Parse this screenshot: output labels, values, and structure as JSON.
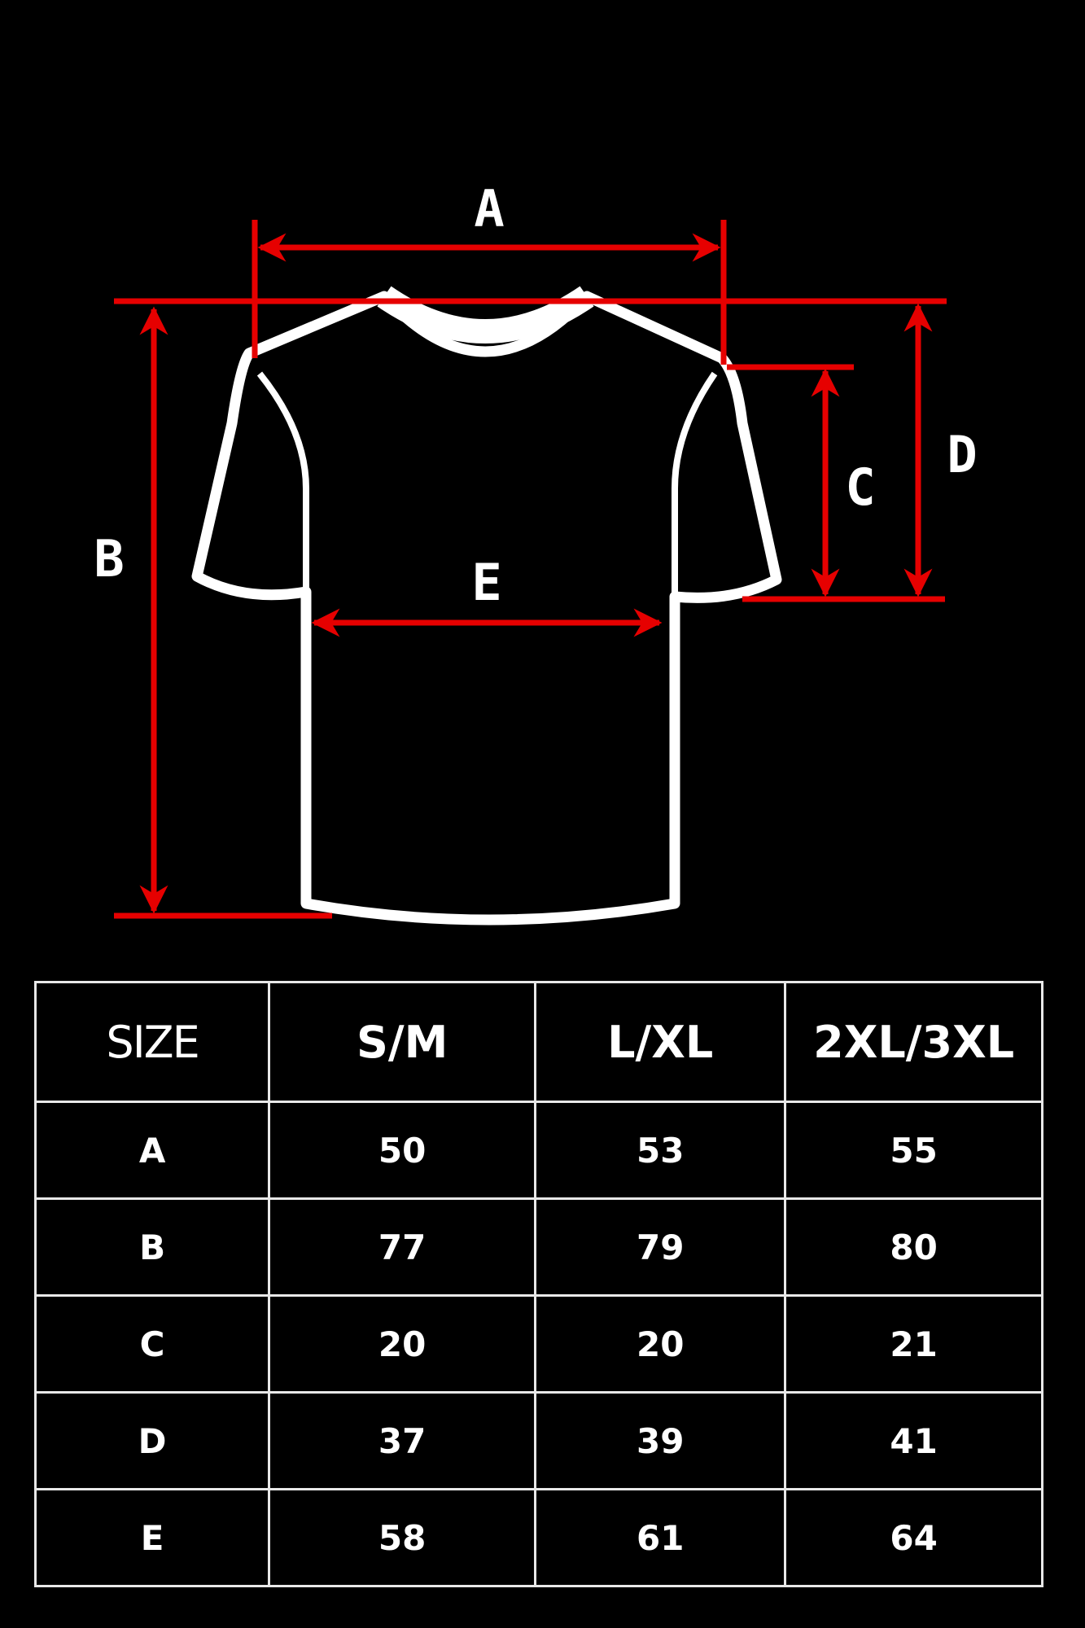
{
  "colors": {
    "background": "#000000",
    "measure_lines": "#e60000",
    "outline": "#ffffff"
  },
  "diagram": {
    "labels": {
      "a": "A",
      "b": "B",
      "c": "C",
      "d": "D",
      "e": "E"
    }
  },
  "table": {
    "headers": [
      "SIZE",
      "S/M",
      "L/XL",
      "2XL/3XL"
    ],
    "rows": [
      [
        "A",
        "50",
        "53",
        "55"
      ],
      [
        "B",
        "77",
        "79",
        "80"
      ],
      [
        "C",
        "20",
        "20",
        "21"
      ],
      [
        "D",
        "37",
        "39",
        "41"
      ],
      [
        "E",
        "58",
        "61",
        "64"
      ]
    ]
  }
}
